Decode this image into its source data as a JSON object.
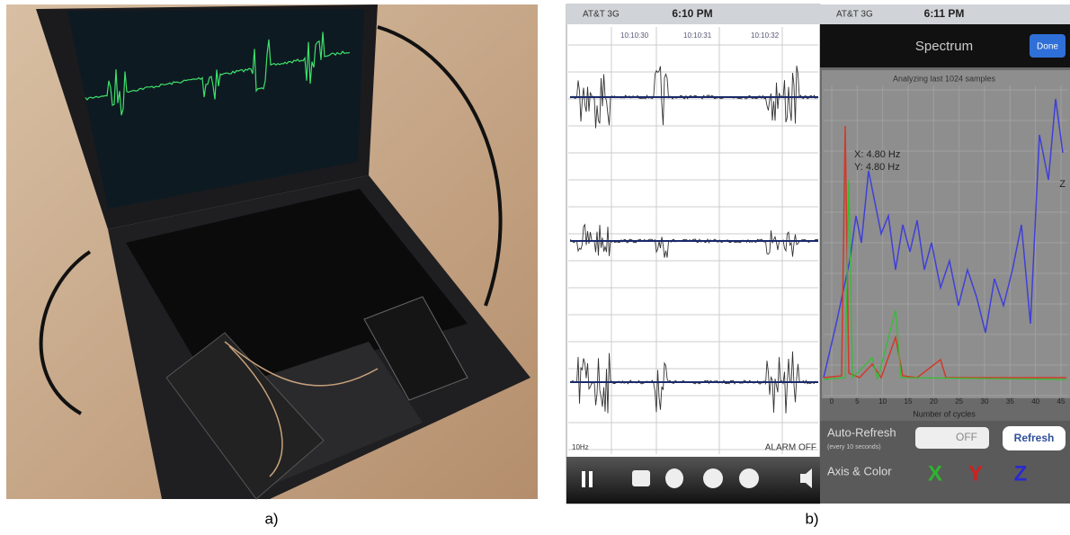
{
  "figure": {
    "panel_a": {
      "caption": "a)"
    },
    "panel_b": {
      "caption": "b)",
      "left_screen": {
        "carrier": "AT&T 3G",
        "time": "6:10 PM",
        "timestamps": [
          "10:10:30",
          "10:10:31",
          "10:10:32"
        ],
        "scale": "10Hz",
        "alarm": "ALARM OFF"
      },
      "right_screen": {
        "carrier": "AT&T 3G",
        "time": "6:11 PM",
        "title": "Spectrum",
        "done_button": "Done",
        "subtitle": "Analyzing last 1024 samples",
        "cursor_x": "X: 4.80 Hz",
        "cursor_y": "Y: 4.80 Hz",
        "side_label": "Z",
        "axis_label": "Number of cycles",
        "x_tick_labels": [
          "0",
          "5",
          "10",
          "15",
          "20",
          "25",
          "30",
          "35",
          "40",
          "45"
        ],
        "auto_refresh": "Auto-Refresh",
        "auto_refresh_note": "(every 10 seconds)",
        "toggle": "OFF",
        "refresh_button": "Refresh",
        "axis_color_label": "Axis & Color",
        "axes": [
          "X",
          "Y",
          "Z"
        ]
      }
    }
  }
}
